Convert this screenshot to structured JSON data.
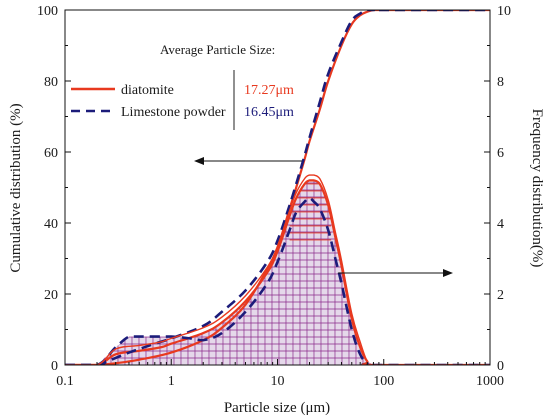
{
  "chart_data": {
    "type": "line",
    "xlabel": "Particle size (μm)",
    "ylabel_left": "Cumulative distribution (%)",
    "ylabel_right": "Frequency distribution(%)",
    "x_scale": "log",
    "xlim": [
      0.1,
      1000
    ],
    "ylim_left": [
      0,
      100
    ],
    "ylim_right": [
      0,
      10
    ],
    "x_ticks": [
      "0.1",
      "1",
      "10",
      "100",
      "1000"
    ],
    "y_ticks_left": [
      "0",
      "20",
      "40",
      "60",
      "80",
      "100"
    ],
    "y_ticks_right": [
      "0",
      "2",
      "4",
      "6",
      "8",
      "10"
    ],
    "grid": false,
    "legend_position": "top-left",
    "avg_title": "Average Particle Size:",
    "series": [
      {
        "name": "diatomite",
        "avg_label": "17.27μm",
        "color": "#e8391f",
        "dash": "solid",
        "cumulative": {
          "x": [
            0.1,
            0.2,
            0.3,
            0.5,
            1,
            2,
            3,
            5,
            8,
            10,
            13,
            15,
            18,
            20,
            25,
            30,
            40,
            50,
            60,
            70,
            80,
            100,
            1000
          ],
          "y": [
            0,
            0,
            0.5,
            1.5,
            3.5,
            7,
            10.5,
            17,
            27,
            33,
            44,
            50,
            58,
            63,
            72,
            80,
            90,
            96,
            98.5,
            99.5,
            100,
            100,
            100
          ]
        },
        "frequency": {
          "x": [
            0.1,
            0.2,
            0.3,
            0.5,
            0.8,
            1,
            2,
            3,
            5,
            8,
            10,
            13,
            15,
            18,
            20,
            22,
            25,
            30,
            35,
            40,
            50,
            60,
            70,
            80,
            1000
          ],
          "y": [
            0,
            0,
            0.3,
            0.4,
            0.5,
            0.6,
            0.9,
            1.2,
            1.8,
            2.6,
            3.2,
            4.2,
            4.7,
            5.1,
            5.2,
            5.2,
            5.1,
            4.5,
            3.6,
            2.8,
            1.3,
            0.5,
            0.1,
            0,
            0
          ]
        }
      },
      {
        "name": "Limestone powder",
        "avg_label": "16.45μm",
        "color": "#1c1c7a",
        "dash": "dashed",
        "cumulative": {
          "x": [
            0.1,
            0.2,
            0.25,
            0.3,
            0.4,
            0.5,
            0.7,
            1,
            2,
            3,
            5,
            8,
            10,
            13,
            15,
            18,
            20,
            25,
            30,
            40,
            50,
            60,
            70,
            80,
            100,
            1000
          ],
          "y": [
            0,
            0,
            1,
            2,
            3.5,
            4.5,
            6,
            7.5,
            11,
            15,
            21,
            29,
            35,
            45,
            51,
            59,
            64,
            74,
            82,
            91,
            97,
            99,
            100,
            100,
            100,
            100
          ]
        },
        "frequency": {
          "x": [
            0.1,
            0.2,
            0.3,
            0.4,
            0.5,
            0.7,
            1,
            1.5,
            2,
            3,
            5,
            8,
            10,
            13,
            15,
            18,
            20,
            22,
            25,
            30,
            35,
            40,
            50,
            60,
            70,
            80,
            1000
          ],
          "y": [
            0,
            0,
            0.5,
            0.8,
            0.8,
            0.8,
            0.8,
            0.75,
            0.7,
            0.9,
            1.5,
            2.3,
            2.9,
            3.8,
            4.3,
            4.6,
            4.7,
            4.6,
            4.4,
            3.8,
            3.0,
            2.3,
            1.0,
            0.3,
            0.05,
            0,
            0
          ]
        }
      }
    ],
    "annotations": [
      {
        "type": "arrow",
        "direction": "left",
        "meaning": "cumulative curves use left axis"
      },
      {
        "type": "arrow",
        "direction": "right",
        "meaning": "frequency curves use right axis"
      }
    ]
  }
}
